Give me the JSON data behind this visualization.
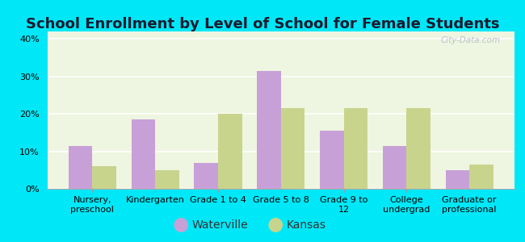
{
  "title": "School Enrollment by Level of School for Female Students",
  "categories": [
    "Nursery,\npreschool",
    "Kindergarten",
    "Grade 1 to 4",
    "Grade 5 to 8",
    "Grade 9 to\n12",
    "College\nundergrad",
    "Graduate or\nprofessional"
  ],
  "waterville": [
    11.5,
    18.5,
    7.0,
    31.5,
    15.5,
    11.5,
    5.0
  ],
  "kansas": [
    6.0,
    5.0,
    20.0,
    21.5,
    21.5,
    21.5,
    6.5
  ],
  "waterville_color": "#c8a0d8",
  "kansas_color": "#c8d48c",
  "background_outer": "#00e8f8",
  "background_inner": "#eef5e0",
  "ylim": [
    0,
    42
  ],
  "yticks": [
    0,
    10,
    20,
    30,
    40
  ],
  "bar_width": 0.38,
  "legend_waterville": "Waterville",
  "legend_kansas": "Kansas",
  "title_fontsize": 13,
  "tick_fontsize": 8,
  "legend_fontsize": 10
}
